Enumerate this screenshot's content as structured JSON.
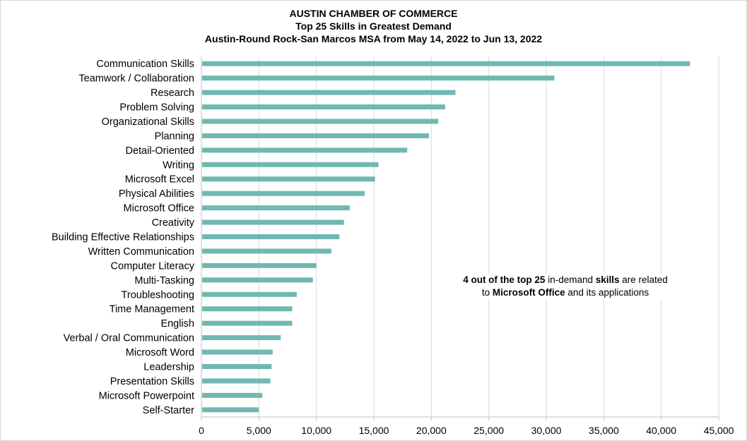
{
  "chart_data": {
    "type": "bar",
    "orientation": "horizontal",
    "title": "AUSTIN CHAMBER OF COMMERCE",
    "subtitle_lines": [
      "Top 25 Skills in Greatest Demand",
      "Austin-Round Rock-San Marcos MSA from May 14, 2022 to Jun 13, 2022"
    ],
    "categories": [
      "Communication Skills",
      "Teamwork / Collaboration",
      "Research",
      "Problem Solving",
      "Organizational Skills",
      "Planning",
      "Detail-Oriented",
      "Writing",
      "Microsoft Excel",
      "Physical Abilities",
      "Microsoft Office",
      "Creativity",
      "Building Effective Relationships",
      "Written Communication",
      "Computer Literacy",
      "Multi-Tasking",
      "Troubleshooting",
      "Time Management",
      "English",
      "Verbal / Oral Communication",
      "Microsoft Word",
      "Leadership",
      "Presentation Skills",
      "Microsoft Powerpoint",
      "Self-Starter"
    ],
    "values": [
      42500,
      30700,
      22100,
      21200,
      20600,
      19800,
      17900,
      15400,
      15100,
      14200,
      12900,
      12400,
      12000,
      11300,
      10000,
      9700,
      8300,
      7900,
      7900,
      6900,
      6200,
      6100,
      6000,
      5300,
      5000
    ],
    "xlim": [
      0,
      45000
    ],
    "x_ticks": [
      0,
      5000,
      10000,
      15000,
      20000,
      25000,
      30000,
      35000,
      40000,
      45000
    ],
    "x_tick_labels": [
      "0",
      "5,000",
      "10,000",
      "15,000",
      "20,000",
      "25,000",
      "30,000",
      "35,000",
      "40,000",
      "45,000"
    ],
    "grid": "vertical",
    "legend": "none",
    "bar_color": "#70b8b2",
    "grid_color": "#d9d9d9",
    "annotation": {
      "line1_parts": [
        {
          "text": "4 out of the top 25",
          "bold": true
        },
        {
          "text": " in-demand ",
          "bold": false
        },
        {
          "text": "skills",
          "bold": true
        },
        {
          "text": " are related",
          "bold": false
        }
      ],
      "line2_parts": [
        {
          "text": "to ",
          "bold": false
        },
        {
          "text": "Microsoft Office",
          "bold": true
        },
        {
          "text": " and its applications",
          "bold": false
        }
      ]
    }
  }
}
